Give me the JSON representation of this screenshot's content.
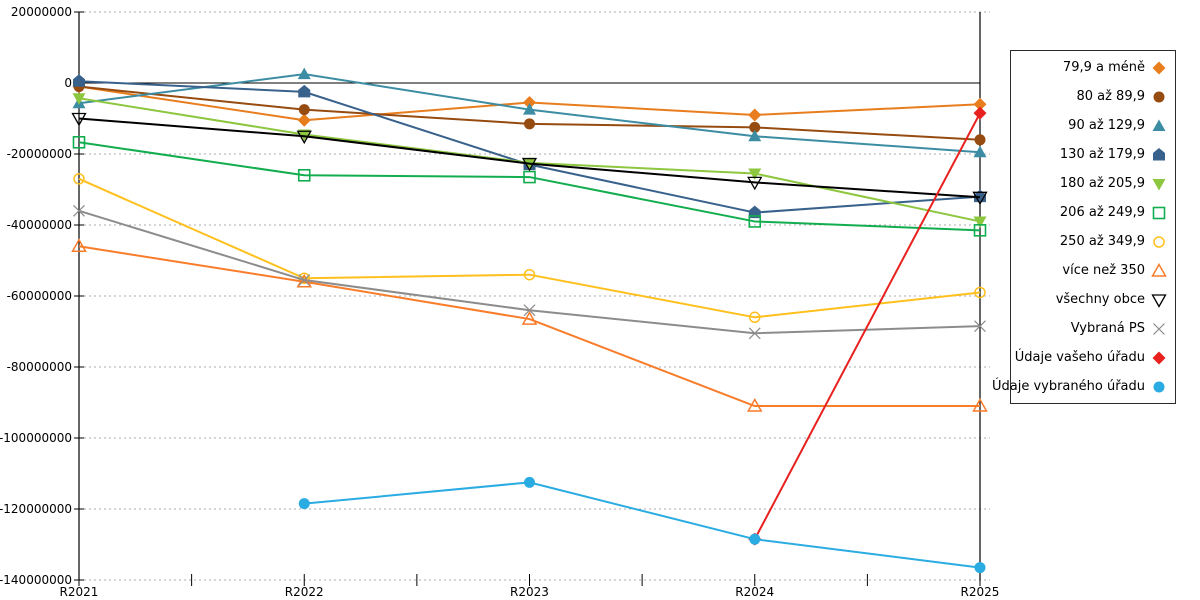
{
  "chart_data": {
    "type": "line",
    "title": "",
    "xlabel": "",
    "ylabel": "",
    "categories": [
      "R2021",
      "R2022",
      "R2023",
      "R2024",
      "R2025"
    ],
    "y_axis": {
      "min": -140000000,
      "max": 20000000,
      "step": 20000000,
      "tick_labels": [
        "20000000",
        "0",
        "-20000000",
        "-40000000",
        "-60000000",
        "-80000000",
        "-100000000",
        "-120000000",
        "-140000000"
      ]
    },
    "grid": true,
    "legend_position": "right",
    "series": [
      {
        "name": "79,9 a méně",
        "color": "#E87D1E",
        "marker": "diamond",
        "values": [
          -1000000,
          -10500000,
          -5500000,
          -9000000,
          -6000000
        ]
      },
      {
        "name": "80 až 89,9",
        "color": "#964B10",
        "marker": "circle",
        "values": [
          -1000000,
          -7500000,
          -11500000,
          -12500000,
          -16000000
        ]
      },
      {
        "name": "90 až 129,9",
        "color": "#3C8DA3",
        "marker": "triangle-up",
        "values": [
          -5700000,
          2500000,
          -7500000,
          -15000000,
          -19500000
        ]
      },
      {
        "name": "130 až 179,9",
        "color": "#38618C",
        "marker": "pentagon",
        "values": [
          500000,
          -2500000,
          -23000000,
          -36500000,
          -32000000
        ]
      },
      {
        "name": "180 až 205,9",
        "color": "#8DC63F",
        "marker": "triangle-down",
        "values": [
          -4300000,
          -14500000,
          -22500000,
          -25500000,
          -39000000
        ]
      },
      {
        "name": "206 až 249,9",
        "color": "#12AD4E",
        "marker": "square-open",
        "values": [
          -16700000,
          -26000000,
          -26500000,
          -39000000,
          -41500000
        ]
      },
      {
        "name": "250 až 349,9",
        "color": "#FFC01E",
        "marker": "circle-open",
        "values": [
          -27000000,
          -55000000,
          -54000000,
          -66000000,
          -59000000
        ]
      },
      {
        "name": "více než 350",
        "color": "#F97C2B",
        "marker": "triangle-up-open",
        "values": [
          -46000000,
          -56000000,
          -66500000,
          -91000000,
          -91000000
        ]
      },
      {
        "name": "všechny obce",
        "color": "#000000",
        "marker": "triangle-down-open",
        "values": [
          -10000000,
          -15000000,
          -22700000,
          -28000000,
          -32200000
        ]
      },
      {
        "name": "Vybraná PS",
        "color": "#8C8C8C",
        "marker": "x-cross",
        "values": [
          -36000000,
          -55500000,
          -64000000,
          -70500000,
          -68500000
        ]
      },
      {
        "name": "Údaje vašeho úřadu",
        "color": "#E8201E",
        "marker": "diamond",
        "values": [
          null,
          null,
          null,
          -128500000,
          -8500000
        ]
      },
      {
        "name": "Údaje vybraného úřadu",
        "color": "#2AACE3",
        "marker": "circle",
        "values": [
          null,
          -118500000,
          -112500000,
          -128500000,
          -136500000
        ]
      }
    ]
  },
  "colors": {
    "grid": "#ABABAB",
    "axis": "#000000",
    "background": "#FFFFFF"
  }
}
